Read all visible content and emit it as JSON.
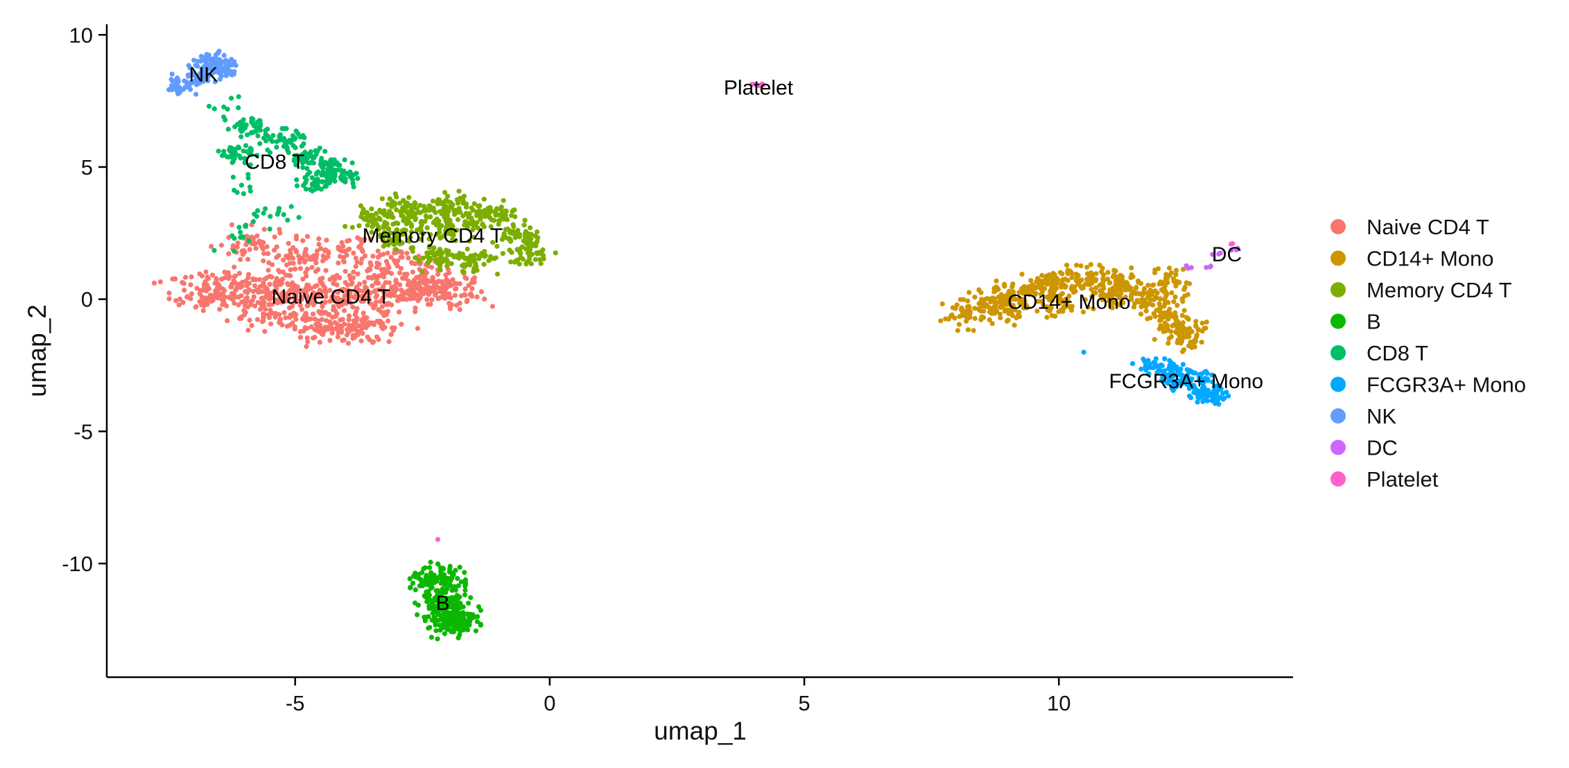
{
  "chart_data": {
    "type": "scatter",
    "title": "",
    "xlabel": "umap_1",
    "ylabel": "umap_2",
    "xlim": [
      -8.7,
      14.6
    ],
    "ylim": [
      -14.3,
      10.4
    ],
    "xticks": [
      -5,
      0,
      5,
      10
    ],
    "yticks": [
      -10,
      -5,
      0,
      5,
      10
    ],
    "xtick_labels": [
      "-5",
      "0",
      "5",
      "10"
    ],
    "ytick_labels": [
      "-10",
      "-5",
      "0",
      "5",
      "10"
    ],
    "grid": false,
    "legend_position": "right",
    "legend_title": "",
    "series": [
      {
        "name": "Naive CD4 T",
        "color": "#F8766D",
        "label_position": [
          -4.3,
          0.1
        ],
        "clusters": [
          {
            "points": [
              [
                -6.8,
                0.5
              ],
              [
                -6.5,
                0.1
              ],
              [
                -6,
                0.5
              ],
              [
                -5.5,
                0.2
              ],
              [
                -5,
                0.4
              ],
              [
                -4.5,
                0.0
              ],
              [
                -4,
                0.5
              ],
              [
                -3.5,
                0.1
              ],
              [
                -3,
                0.4
              ],
              [
                -2.5,
                0.3
              ],
              [
                -2,
                0.2
              ],
              [
                -5.5,
                -0.6
              ],
              [
                -4.5,
                -0.9
              ],
              [
                -3.5,
                -0.8
              ],
              [
                -4,
                -1.3
              ],
              [
                -5,
                1.5
              ],
              [
                -4,
                1.8
              ],
              [
                -3,
                1.5
              ],
              [
                -5.8,
                2.1
              ],
              [
                -2.2,
                0.8
              ]
            ],
            "spread": [
              0.75,
              0.55
            ],
            "count": 1050
          }
        ]
      },
      {
        "name": "CD14+ Mono",
        "color": "#CD9600",
        "label_position": [
          10.2,
          -0.1
        ],
        "clusters": [
          {
            "points": [
              [
                8.2,
                -0.6
              ],
              [
                8.7,
                -0.1
              ],
              [
                9.2,
                0.3
              ],
              [
                9.7,
                0.5
              ],
              [
                10.2,
                0.7
              ],
              [
                10.7,
                0.8
              ],
              [
                11.2,
                0.6
              ],
              [
                11.7,
                0.1
              ],
              [
                12.1,
                -0.5
              ],
              [
                12.4,
                -1.1
              ],
              [
                9,
                -0.4
              ],
              [
                10,
                -0.1
              ],
              [
                11,
                0.1
              ],
              [
                12.2,
                0.6
              ],
              [
                12.5,
                -1.4
              ]
            ],
            "spread": [
              0.4,
              0.45
            ],
            "count": 720
          }
        ]
      },
      {
        "name": "Memory CD4 T",
        "color": "#7CAE00",
        "label_position": [
          -2.3,
          2.4
        ],
        "clusters": [
          {
            "points": [
              [
                -3.5,
                3.0
              ],
              [
                -3,
                3.4
              ],
              [
                -2.5,
                3.2
              ],
              [
                -2,
                3.5
              ],
              [
                -1.5,
                3.1
              ],
              [
                -1,
                3.2
              ],
              [
                -0.6,
                2.4
              ],
              [
                -0.4,
                1.7
              ],
              [
                -1.5,
                1.5
              ],
              [
                -2.2,
                1.6
              ],
              [
                -3,
                2.3
              ],
              [
                -2,
                2.5
              ]
            ],
            "spread": [
              0.4,
              0.45
            ],
            "count": 560
          }
        ]
      },
      {
        "name": "B",
        "color": "#0CB702",
        "label_position": [
          -2.1,
          -11.5
        ],
        "clusters": [
          {
            "points": [
              [
                -2.1,
                -11.5
              ],
              [
                -2.2,
                -10.6
              ],
              [
                -1.9,
                -12.2
              ]
            ],
            "spread": [
              0.42,
              0.5
            ],
            "count": 370
          }
        ]
      },
      {
        "name": "CD8 T",
        "color": "#00BE67",
        "label_position": [
          -5.4,
          5.2
        ],
        "clusters": [
          {
            "points": [
              [
                -5.9,
                6.5
              ],
              [
                -5.2,
                6.0
              ],
              [
                -4.8,
                5.4
              ],
              [
                -4.4,
                5.0
              ],
              [
                -4.6,
                4.4
              ],
              [
                -4.1,
                4.7
              ],
              [
                -6.1,
                5.5
              ]
            ],
            "spread": [
              0.32,
              0.35
            ],
            "count": 300
          },
          {
            "points": [
              [
                -6.0,
                4.4
              ],
              [
                -5.8,
                3.1
              ],
              [
                -6.3,
                2.2
              ],
              [
                -5.3,
                3.3
              ],
              [
                -6.3,
                7.2
              ]
            ],
            "spread": [
              0.3,
              0.5
            ],
            "count": 45
          }
        ]
      },
      {
        "name": "FCGR3A+ Mono",
        "color": "#00A9FF",
        "label_position": [
          12.5,
          -3.1
        ],
        "clusters": [
          {
            "points": [
              [
                12.2,
                -2.7
              ],
              [
                12.7,
                -3.0
              ],
              [
                12.9,
                -3.4
              ],
              [
                12.4,
                -3.2
              ],
              [
                11.8,
                -2.5
              ],
              [
                13,
                -3.7
              ]
            ],
            "spread": [
              0.3,
              0.3
            ],
            "count": 190
          },
          {
            "points": [
              [
                10.5,
                -2.0
              ]
            ],
            "spread": [
              0.02,
              0.02
            ],
            "count": 1
          }
        ]
      },
      {
        "name": "NK",
        "color": "#619CFF",
        "label_position": [
          -6.8,
          8.5
        ],
        "clusters": [
          {
            "points": [
              [
                -6.8,
                8.5
              ],
              [
                -7.2,
                8.1
              ],
              [
                -6.4,
                8.7
              ],
              [
                -6.6,
                9.0
              ]
            ],
            "spread": [
              0.3,
              0.32
            ],
            "count": 170
          }
        ]
      },
      {
        "name": "DC",
        "color": "#CD65FF",
        "label_position": [
          13.3,
          1.7
        ],
        "clusters": [
          {
            "points": [
              [
                13.2,
                1.7
              ],
              [
                13.5,
                1.9
              ],
              [
                12.7,
                1.2
              ],
              [
                12.9,
                1.3
              ]
            ],
            "spread": [
              0.15,
              0.15
            ],
            "count": 12
          }
        ]
      },
      {
        "name": "Platelet",
        "color": "#FF61CC",
        "label_position": [
          4.1,
          8.0
        ],
        "clusters": [
          {
            "points": [
              [
                4.1,
                8.1
              ]
            ],
            "spread": [
              0.12,
              0.04
            ],
            "count": 8
          },
          {
            "points": [
              [
                13.4,
                2.1
              ]
            ],
            "spread": [
              0.05,
              0.05
            ],
            "count": 2
          },
          {
            "points": [
              [
                -2.2,
                -9.1
              ]
            ],
            "spread": [
              0.03,
              0.03
            ],
            "count": 1
          }
        ]
      }
    ]
  }
}
